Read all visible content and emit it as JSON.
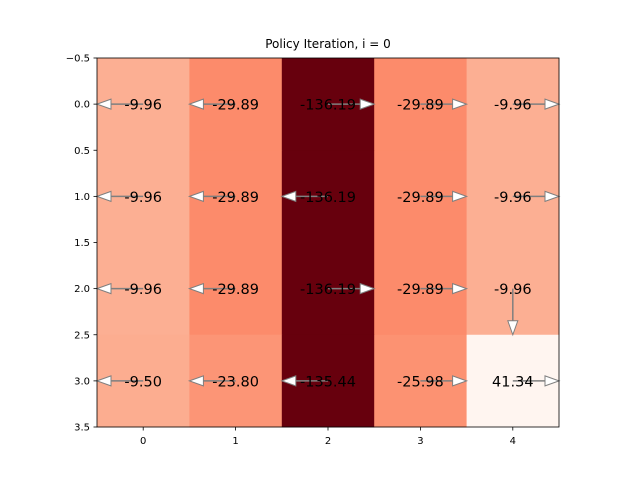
{
  "chart_data": {
    "type": "heatmap",
    "title": "Policy Iteration, i = 0",
    "xlabel": "",
    "ylabel": "",
    "x_ticks": [
      "0",
      "1",
      "2",
      "3",
      "4"
    ],
    "y_ticks": [
      "−0.5",
      "0.0",
      "0.5",
      "1.0",
      "1.5",
      "2.0",
      "2.5",
      "3.0",
      "3.5"
    ],
    "x_range": [
      -0.5,
      4.5
    ],
    "y_range": [
      3.5,
      -0.5
    ],
    "y_inverted": true,
    "grid": false,
    "colormap": "Reds_r",
    "value_labels": [
      [
        "-9.96",
        "-29.89",
        "-136.19",
        "-29.89",
        "-9.96"
      ],
      [
        "-9.96",
        "-29.89",
        "-136.19",
        "-29.89",
        "-9.96"
      ],
      [
        "-9.96",
        "-29.89",
        "-136.19",
        "-29.89",
        "-9.96"
      ],
      [
        "-9.50",
        "-23.80",
        "-135.44",
        "-25.98",
        "41.34"
      ]
    ],
    "values": [
      [
        -9.96,
        -29.89,
        -136.19,
        -29.89,
        -9.96
      ],
      [
        -9.96,
        -29.89,
        -136.19,
        -29.89,
        -9.96
      ],
      [
        -9.96,
        -29.89,
        -136.19,
        -29.89,
        -9.96
      ],
      [
        -9.5,
        -23.8,
        -135.44,
        -25.98,
        41.34
      ]
    ],
    "cell_colors": [
      [
        "#fcaf93",
        "#fc8b6b",
        "#67000d",
        "#fc8b6b",
        "#fcaf93"
      ],
      [
        "#fcaf93",
        "#fc8b6b",
        "#67000d",
        "#fc8b6b",
        "#fcaf93"
      ],
      [
        "#fcaf93",
        "#fc8b6b",
        "#67000d",
        "#fc8b6b",
        "#fcaf93"
      ],
      [
        "#fcad90",
        "#fc9576",
        "#67000d",
        "#fc9272",
        "#fff5f0"
      ]
    ],
    "policy_arrows": [
      [
        "left",
        "left",
        "right",
        "right",
        "right"
      ],
      [
        "left",
        "left",
        "left",
        "right",
        "right"
      ],
      [
        "left",
        "left",
        "right",
        "right",
        "down"
      ],
      [
        "left",
        "left",
        "left",
        "right",
        "right"
      ]
    ],
    "arrow_color": "#7f7f7f",
    "arrow_fill": "#ffffff"
  }
}
